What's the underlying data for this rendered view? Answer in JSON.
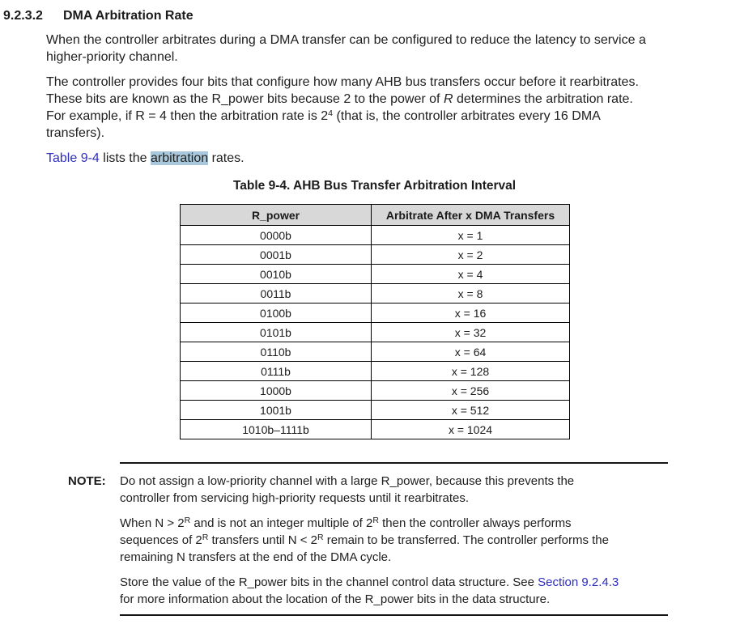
{
  "page": {
    "section_number": "9.2.3.2",
    "section_title": "DMA Arbitration Rate"
  },
  "colors": {
    "link": "#2d2dbe",
    "search_highlight": "#aac8dc",
    "table_header_bg": "#d8d8d8",
    "text": "#202020"
  },
  "paragraphs": [
    {
      "name": "para-latency",
      "segments": [
        {
          "t": "When the controller arbitrates during a DMA transfer can be configured to reduce the latency to service a",
          "s": "plain"
        },
        {
          "s": "br"
        },
        {
          "t": "higher-priority channel.",
          "s": "plain"
        }
      ]
    },
    {
      "name": "para-rpower",
      "segments": [
        {
          "t": "The controller provides four bits that configure how many AHB bus transfers occur before it rearbitrates.",
          "s": "plain"
        },
        {
          "s": "br"
        },
        {
          "t": "These bits are known as the R_power bits because 2 to the power of ",
          "s": "plain"
        },
        {
          "t": "R",
          "s": "italic"
        },
        {
          "t": " determines the arbitration rate.",
          "s": "plain"
        },
        {
          "s": "br"
        },
        {
          "t": "For example, if R = 4 then the arbitration rate is 2",
          "s": "plain"
        },
        {
          "t": "4",
          "s": "sup"
        },
        {
          "t": " (that is, the controller arbitrates every 16 DMA",
          "s": "plain"
        },
        {
          "s": "br"
        },
        {
          "t": "transfers).",
          "s": "plain"
        }
      ]
    },
    {
      "name": "para-table-ref",
      "segments": [
        {
          "t": "Table 9-4",
          "s": "link"
        },
        {
          "t": " lists the ",
          "s": "plain"
        },
        {
          "t": "arbitration",
          "s": "highlight"
        },
        {
          "t": " rates.",
          "s": "plain"
        }
      ]
    }
  ],
  "table": {
    "title": "Table 9-4. AHB Bus Transfer Arbitration Interval",
    "headers": [
      "R_power",
      "Arbitrate After x DMA Transfers"
    ],
    "rows": [
      [
        "0000b",
        "x = 1"
      ],
      [
        "0001b",
        "x = 2"
      ],
      [
        "0010b",
        "x = 4"
      ],
      [
        "0011b",
        "x = 8"
      ],
      [
        "0100b",
        "x = 16"
      ],
      [
        "0101b",
        "x = 32"
      ],
      [
        "0110b",
        "x = 64"
      ],
      [
        "0111b",
        "x = 128"
      ],
      [
        "1000b",
        "x = 256"
      ],
      [
        "1001b",
        "x = 512"
      ],
      [
        "1010b–1111b",
        "x = 1024"
      ]
    ]
  },
  "note": {
    "label": "NOTE:",
    "paragraphs": [
      {
        "name": "note-para-priority",
        "segments": [
          {
            "t": "Do not assign a low-priority channel with a large R_power, because this prevents the",
            "s": "plain"
          },
          {
            "s": "br"
          },
          {
            "t": "controller from servicing high-priority requests until it rearbitrates.",
            "s": "plain"
          }
        ]
      },
      {
        "name": "note-para-sequences",
        "segments": [
          {
            "t": "When N > 2",
            "s": "plain"
          },
          {
            "t": "R",
            "s": "sup"
          },
          {
            "t": " and is not an integer multiple of 2",
            "s": "plain"
          },
          {
            "t": "R",
            "s": "sup"
          },
          {
            "t": " then the controller always performs",
            "s": "plain"
          },
          {
            "s": "br"
          },
          {
            "t": "sequences of 2",
            "s": "plain"
          },
          {
            "t": "R",
            "s": "sup"
          },
          {
            "t": " transfers until N < 2",
            "s": "plain"
          },
          {
            "t": "R",
            "s": "sup"
          },
          {
            "t": " remain to be transferred. The controller performs the",
            "s": "plain"
          },
          {
            "s": "br"
          },
          {
            "t": "remaining N transfers at the end of the DMA cycle.",
            "s": "plain"
          }
        ]
      },
      {
        "name": "note-para-store",
        "segments": [
          {
            "t": "Store the value of the R_power bits in the channel control data structure. See ",
            "s": "plain"
          },
          {
            "t": "Section 9.2.4.3",
            "s": "link"
          },
          {
            "s": "br"
          },
          {
            "t": "for more information about the location of the R_power bits in the data structure.",
            "s": "plain"
          }
        ]
      }
    ]
  }
}
